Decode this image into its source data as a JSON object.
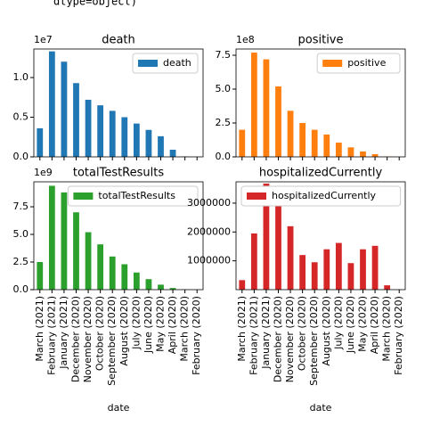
{
  "output_text": "dtype=object)",
  "chart_data": [
    {
      "type": "bar",
      "title": "death",
      "offset_text": "1e7",
      "legend": "upper right",
      "series": [
        {
          "name": "death",
          "color": "#1f77b4",
          "values": [
            0.36,
            1.33,
            1.2,
            0.93,
            0.72,
            0.65,
            0.58,
            0.5,
            0.42,
            0.34,
            0.26,
            0.09,
            0.005,
            0
          ]
        }
      ],
      "ylim": [
        0,
        1.36
      ],
      "yticks": [
        {
          "value": 0,
          "label": "0.0"
        },
        0.5,
        {
          "value": 1,
          "label": "1.0"
        }
      ]
    },
    {
      "type": "bar",
      "title": "positive",
      "offset_text": "1e8",
      "legend": "upper right",
      "series": [
        {
          "name": "positive",
          "color": "#ff7f0e",
          "values": [
            2.0,
            7.7,
            7.2,
            5.2,
            3.4,
            2.5,
            2.0,
            1.65,
            1.05,
            0.7,
            0.4,
            0.2,
            0.02,
            0
          ]
        }
      ],
      "ylim": [
        0,
        7.96
      ],
      "yticks": [
        {
          "value": 0,
          "label": "0.0"
        },
        2.5,
        {
          "value": 5,
          "label": "5.0"
        },
        7.5
      ]
    },
    {
      "type": "bar",
      "title": "totalTestResults",
      "offset_text": "1e9",
      "legend": "upper right",
      "x_label": "date",
      "categories": [
        "March (2021)",
        "February (2021)",
        "January (2021)",
        "December (2020)",
        "November (2020)",
        "October (2020)",
        "September (2020)",
        "August (2020)",
        "July (2020)",
        "June (2020)",
        "May (2020)",
        "April (2020)",
        "March (2020)",
        "February (2020)"
      ],
      "series": [
        {
          "name": "totalTestResults",
          "color": "#2ca02c",
          "values": [
            2.5,
            9.4,
            8.8,
            7.0,
            5.2,
            4.1,
            3.0,
            2.3,
            1.55,
            0.95,
            0.45,
            0.15,
            0.02,
            0
          ]
        }
      ],
      "ylim": [
        0,
        9.76
      ],
      "yticks": [
        {
          "value": 0,
          "label": "0.0"
        },
        2.5,
        {
          "value": 5,
          "label": "5.0"
        },
        7.5
      ]
    },
    {
      "type": "bar",
      "title": "hospitalizedCurrently",
      "legend": "upper left",
      "x_label": "date",
      "categories": [
        "March (2021)",
        "February (2021)",
        "January (2021)",
        "December (2020)",
        "November (2020)",
        "October (2020)",
        "September (2020)",
        "August (2020)",
        "July (2020)",
        "June (2020)",
        "May (2020)",
        "April (2020)",
        "March (2020)",
        "February (2020)"
      ],
      "series": [
        {
          "name": "hospitalizedCurrently",
          "color": "#d62728",
          "values": [
            330000,
            1950000,
            3680000,
            3500000,
            2200000,
            1200000,
            950000,
            1400000,
            1620000,
            920000,
            1400000,
            1520000,
            150000,
            0
          ]
        }
      ],
      "ylim": [
        0,
        3740000
      ],
      "yticks": [
        1000000,
        2000000,
        3000000
      ]
    }
  ]
}
